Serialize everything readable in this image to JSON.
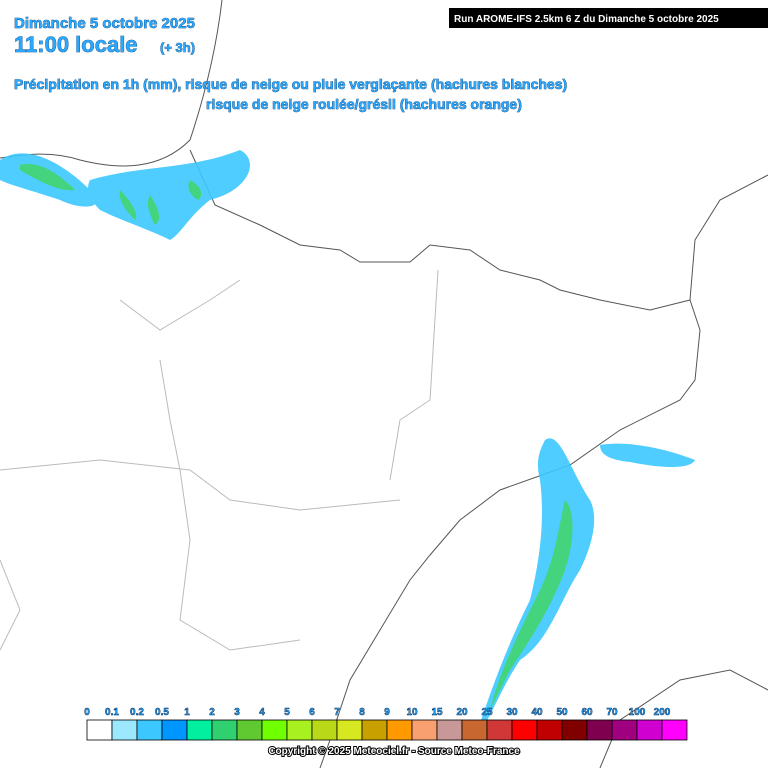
{
  "header": {
    "date": "Dimanche 5 octobre 2025",
    "time": "11:00 locale",
    "lead": "(+ 3h)",
    "line1": "Précipitation en 1h (mm), risque de neige ou pluie verglaçante (hachures blanches)",
    "line2": "risque de neige roulée/grésil (hachures orange)",
    "run": "Run AROME-IFS 2.5km 6 Z du Dimanche 5 octobre 2025"
  },
  "legend": {
    "labels": [
      0,
      0.1,
      0.2,
      0.5,
      1,
      2,
      3,
      4,
      5,
      6,
      7,
      8,
      9,
      10,
      15,
      20,
      25,
      30,
      40,
      50,
      60,
      70,
      100,
      200
    ],
    "colors": [
      "#ffffff",
      "#9be8ff",
      "#3cc8ff",
      "#0096ff",
      "#00f0a0",
      "#30d070",
      "#60c830",
      "#70ff00",
      "#a8f020",
      "#b8d818",
      "#d8e820",
      "#c8a000",
      "#ff9900",
      "#f8a070",
      "#c89898",
      "#c86830",
      "#d03838",
      "#ff0000",
      "#c00000",
      "#800000",
      "#800050",
      "#a00080",
      "#d000d0",
      "#ff00ff"
    ]
  },
  "footer": {
    "copyright": "Copyright © 2025 Meteociel.fr - Source Meteo-France"
  }
}
